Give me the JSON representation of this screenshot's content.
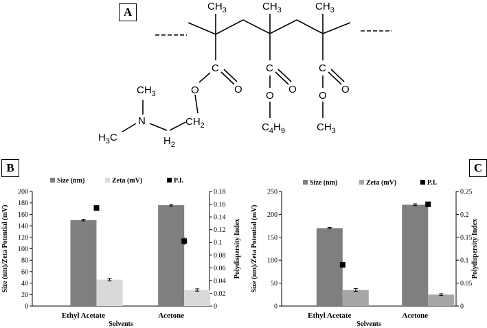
{
  "structure": {
    "panel_label": "A",
    "labels": {
      "ch3_a": "CH",
      "ch3_a_sub": "3",
      "ch3_b": "CH",
      "ch3_b_sub": "3",
      "ch3_c": "CH",
      "ch3_c_sub": "3",
      "c1": "C",
      "c2": "C",
      "c3": "C",
      "o_ester1": "O",
      "o_dbl1": "O",
      "o_ester2": "O",
      "o_dbl2": "O",
      "o_ester3": "O",
      "o_dbl3": "O",
      "n_ch3": "CH",
      "n_ch3_sub": "3",
      "n_atom": "N",
      "h3c": "H",
      "h3c_sub": "3",
      "h3c_c": "C",
      "ch2_top": "CH",
      "ch2_top_sub": "2",
      "h2_bot": "H",
      "h2_bot_sub": "2",
      "c4h9_c": "C",
      "c4h9_4": "4",
      "c4h9_h": "H",
      "c4h9_9": "9",
      "och3": "CH",
      "och3_sub": "3"
    }
  },
  "chart_data": [
    {
      "panel_label": "B",
      "type": "bar",
      "categories": [
        "Ethyl Acetate",
        "Acetone"
      ],
      "xlabel": "Solvents",
      "ylabel": "Size (nm)/Zeta Potential (mV)",
      "y2label": "Polydispersity Index",
      "ylim": [
        0,
        200
      ],
      "yticks": [
        "0",
        "20",
        "40",
        "60",
        "80",
        "100",
        "120",
        "140",
        "160",
        "180",
        "200"
      ],
      "y2lim": [
        0,
        0.18
      ],
      "y2ticks": [
        "0",
        "0.02",
        "0.04",
        "0.06",
        "0.08",
        "0.1",
        "0.12",
        "0.14",
        "0.16",
        "0.18"
      ],
      "legend_position": "top",
      "series": [
        {
          "name": "Size (nm)",
          "values": [
            150,
            176
          ],
          "errors": [
            1.5,
            1.5
          ],
          "color": "#7f7f7f",
          "axis": "left"
        },
        {
          "name": "Zeta (mV)",
          "values": [
            46,
            28
          ],
          "errors": [
            2.0,
            2.0
          ],
          "color": "#d9d9d9",
          "axis": "left"
        },
        {
          "name": "P.I.",
          "values": [
            0.154,
            0.102
          ],
          "errors": [
            0.003,
            0.006
          ],
          "color": "#000000",
          "axis": "right",
          "marker": "square"
        }
      ]
    },
    {
      "panel_label": "C",
      "type": "bar",
      "categories": [
        "Ethyl Acetate",
        "Acetone"
      ],
      "xlabel": "Solvents",
      "ylabel": "Size (nm)/Zeta Potential (mV)",
      "y2label": "Polydispersity Index",
      "ylim": [
        0,
        250
      ],
      "yticks": [
        "0",
        "50",
        "100",
        "150",
        "200",
        "250"
      ],
      "y2lim": [
        0,
        0.25
      ],
      "y2ticks": [
        "0",
        "0.05",
        "0.1",
        "0.15",
        "0.2",
        "0.25"
      ],
      "legend_position": "top",
      "series": [
        {
          "name": "Size (nm)",
          "values": [
            170,
            221
          ],
          "errors": [
            1.5,
            2.0
          ],
          "color": "#7f7f7f",
          "axis": "left"
        },
        {
          "name": "Zeta (mV)",
          "values": [
            35,
            25
          ],
          "errors": [
            3.0,
            2.0
          ],
          "color": "#a6a6a6",
          "axis": "left"
        },
        {
          "name": "P.I.",
          "values": [
            0.09,
            0.222
          ],
          "errors": [
            0.002,
            0.004
          ],
          "color": "#000000",
          "axis": "right",
          "marker": "square"
        }
      ]
    }
  ]
}
